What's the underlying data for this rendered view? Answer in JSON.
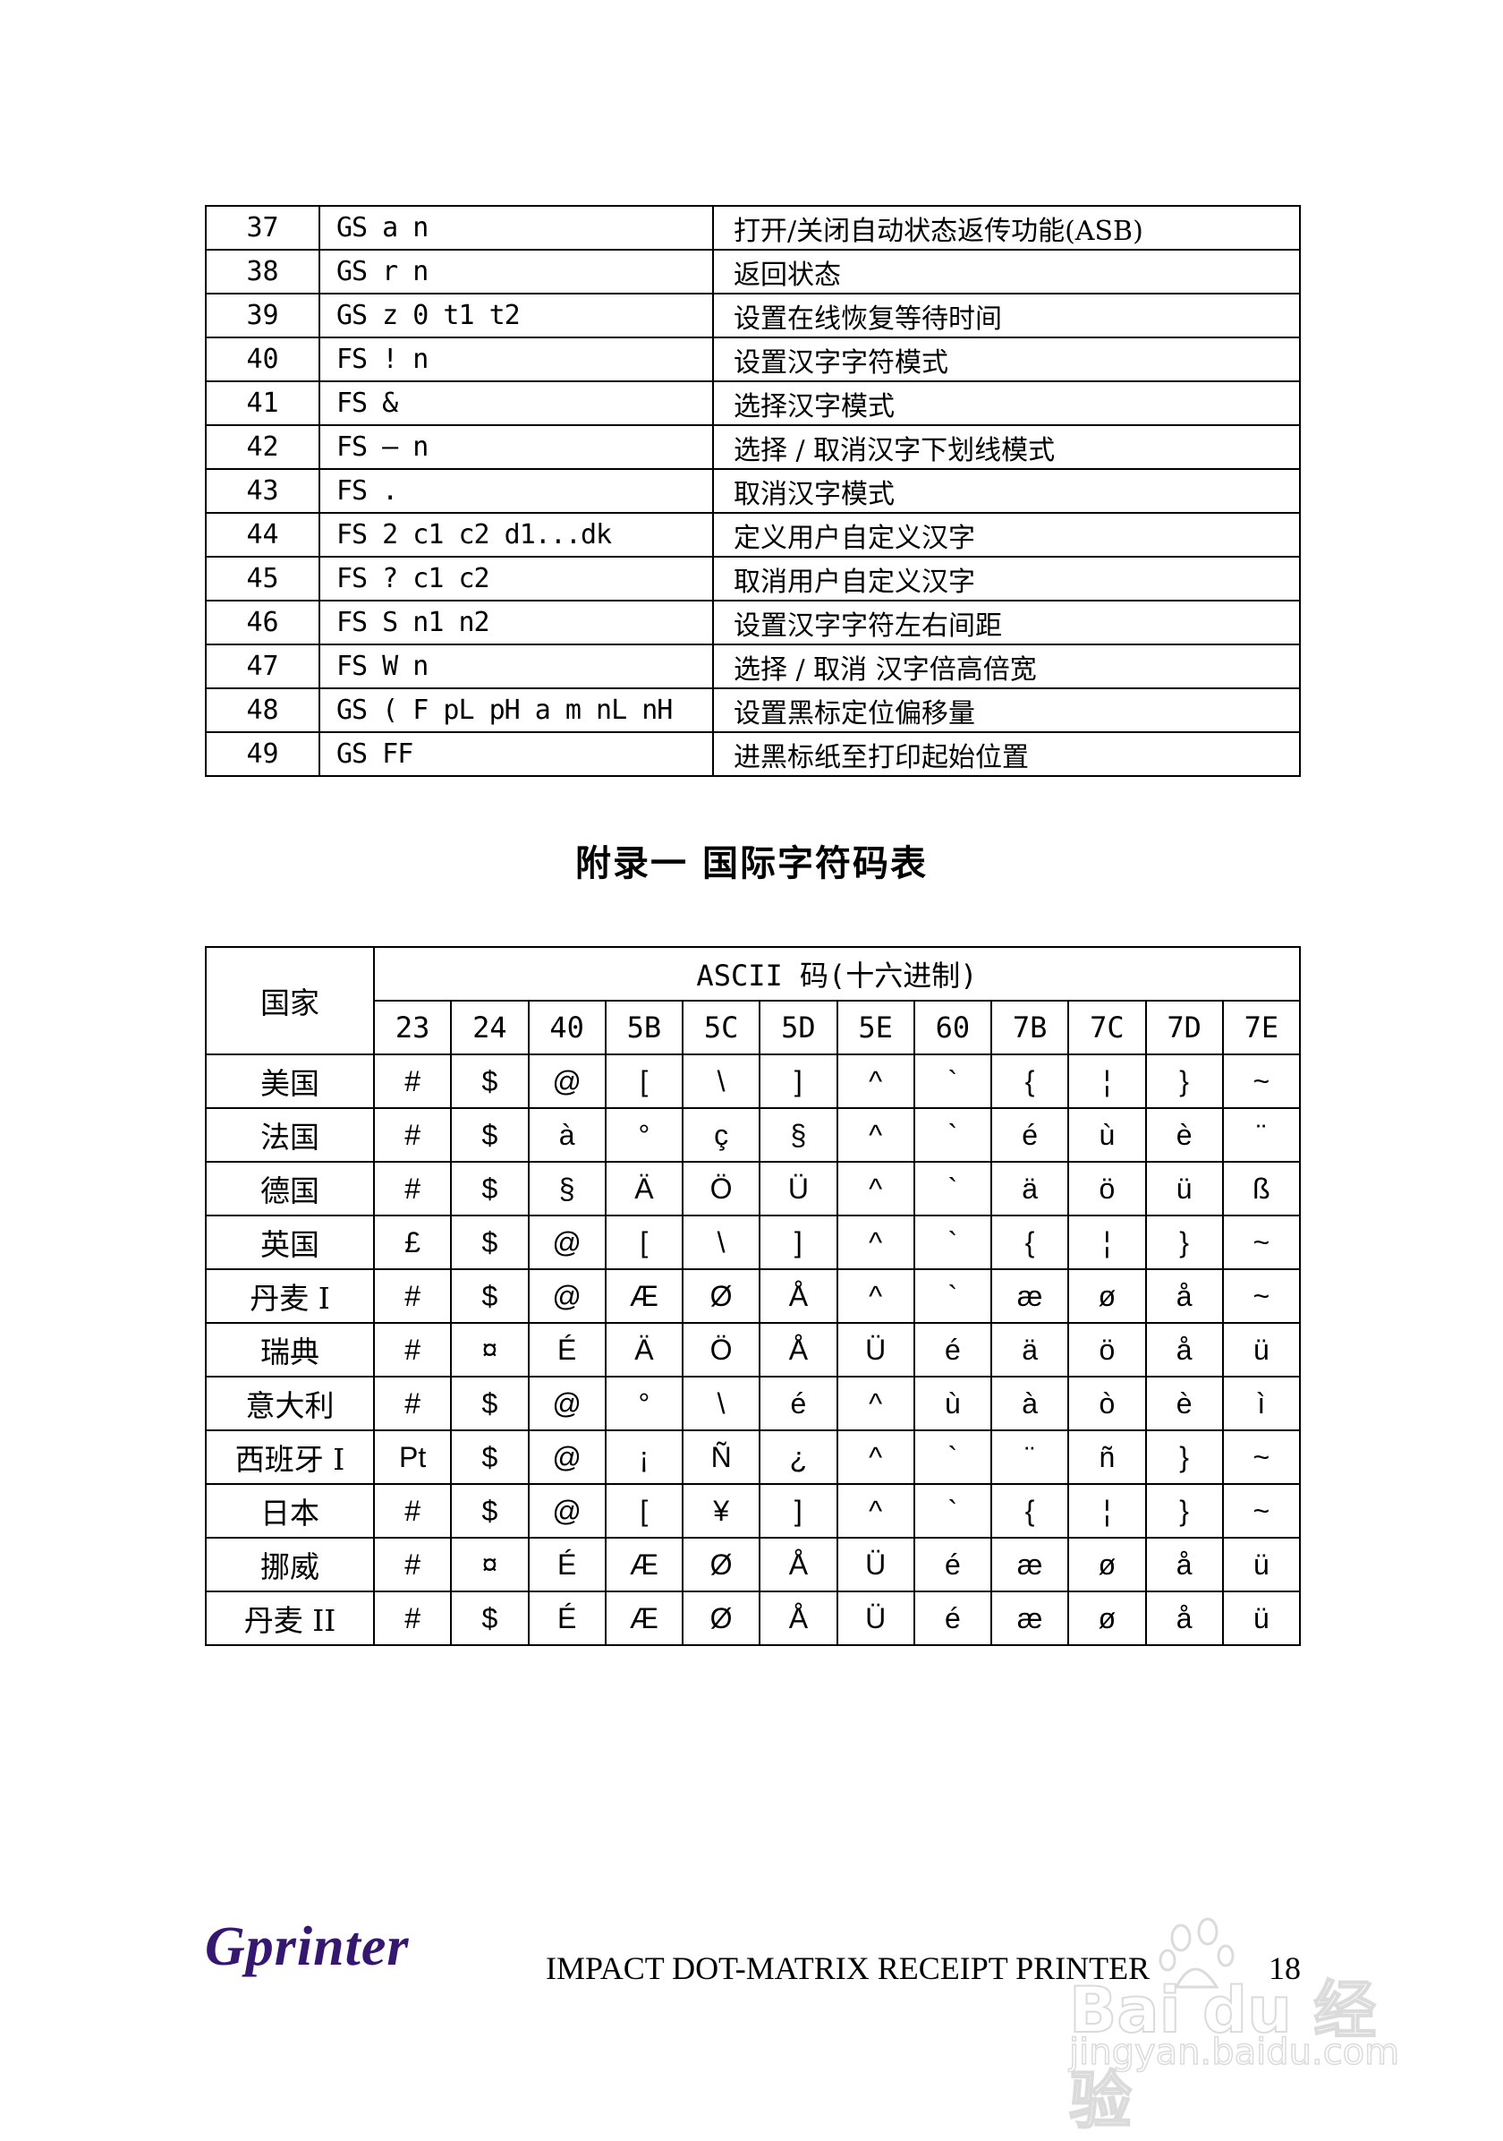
{
  "commands": [
    {
      "num": "37",
      "code": "GS a n",
      "desc": "打开/关闭自动状态返传功能(ASB)"
    },
    {
      "num": "38",
      "code": "GS r n",
      "desc": "返回状态"
    },
    {
      "num": "39",
      "code": "GS z 0 t1 t2",
      "desc": "设置在线恢复等待时间"
    },
    {
      "num": "40",
      "code": "FS ! n",
      "desc": "设置汉字字符模式"
    },
    {
      "num": "41",
      "code": "FS &",
      "desc": "选择汉字模式"
    },
    {
      "num": "42",
      "code": "FS – n",
      "desc": "选择 / 取消汉字下划线模式"
    },
    {
      "num": "43",
      "code": "FS .",
      "desc": "取消汉字模式"
    },
    {
      "num": "44",
      "code": "FS 2 c1 c2 d1...dk",
      "desc": "定义用户自定义汉字"
    },
    {
      "num": "45",
      "code": "FS ? c1 c2",
      "desc": "取消用户自定义汉字"
    },
    {
      "num": "46",
      "code": "FS S n1 n2",
      "desc": "设置汉字字符左右间距"
    },
    {
      "num": "47",
      "code": "FS W n",
      "desc": "选择 / 取消 汉字倍高倍宽"
    },
    {
      "num": "48",
      "code": "GS ( F pL pH a m nL nH",
      "desc": "设置黑标定位偏移量"
    },
    {
      "num": "49",
      "code": "GS FF",
      "desc": "进黑标纸至打印起始位置"
    }
  ],
  "section_title": "附录一  国际字符码表",
  "char_table": {
    "country_header": "国家",
    "ascii_header": "ASCII 码(十六进制)",
    "codes": [
      "23",
      "24",
      "40",
      "5B",
      "5C",
      "5D",
      "5E",
      "60",
      "7B",
      "7C",
      "7D",
      "7E"
    ],
    "rows": [
      {
        "country": "美国",
        "chars": [
          "#",
          "$",
          "@",
          "[",
          "\\",
          "]",
          "^",
          "`",
          "{",
          "¦",
          "}",
          "~"
        ]
      },
      {
        "country": "法国",
        "chars": [
          "#",
          "$",
          "à",
          "°",
          "ç",
          "§",
          "^",
          "`",
          "é",
          "ù",
          "è",
          "¨"
        ]
      },
      {
        "country": "德国",
        "chars": [
          "#",
          "$",
          "§",
          "Ä",
          "Ö",
          "Ü",
          "^",
          "`",
          "ä",
          "ö",
          "ü",
          "ß"
        ]
      },
      {
        "country": "英国",
        "chars": [
          "£",
          "$",
          "@",
          "[",
          "\\",
          "]",
          "^",
          "`",
          "{",
          "¦",
          "}",
          "~"
        ]
      },
      {
        "country": "丹麦 I",
        "chars": [
          "#",
          "$",
          "@",
          "Æ",
          "Ø",
          "Å",
          "^",
          "`",
          "æ",
          "ø",
          "å",
          "~"
        ]
      },
      {
        "country": "瑞典",
        "chars": [
          "#",
          "¤",
          "É",
          "Ä",
          "Ö",
          "Å",
          "Ü",
          "é",
          "ä",
          "ö",
          "å",
          "ü"
        ]
      },
      {
        "country": "意大利",
        "chars": [
          "#",
          "$",
          "@",
          "°",
          "\\",
          "é",
          "^",
          "ù",
          "à",
          "ò",
          "è",
          "ì"
        ]
      },
      {
        "country": "西班牙 I",
        "chars": [
          "Pt",
          "$",
          "@",
          "¡",
          "Ñ",
          "¿",
          "^",
          "`",
          "¨",
          "ñ",
          "}",
          "~"
        ]
      },
      {
        "country": "日本",
        "chars": [
          "#",
          "$",
          "@",
          "[",
          "¥",
          "]",
          "^",
          "`",
          "{",
          "¦",
          "}",
          "~"
        ]
      },
      {
        "country": "挪威",
        "chars": [
          "#",
          "¤",
          "É",
          "Æ",
          "Ø",
          "Å",
          "Ü",
          "é",
          "æ",
          "ø",
          "å",
          "ü"
        ]
      },
      {
        "country": "丹麦 II",
        "chars": [
          "#",
          "$",
          "É",
          "Æ",
          "Ø",
          "Å",
          "Ü",
          "é",
          "æ",
          "ø",
          "å",
          "ü"
        ]
      }
    ]
  },
  "footer": {
    "logo": "Gprinter",
    "logo_color": "#35176f",
    "text": "IMPACT DOT-MATRIX RECEIPT PRINTER",
    "page_number": "18"
  },
  "watermark": {
    "brand": "Baidu经验",
    "url": "jingyan.baidu.com"
  }
}
